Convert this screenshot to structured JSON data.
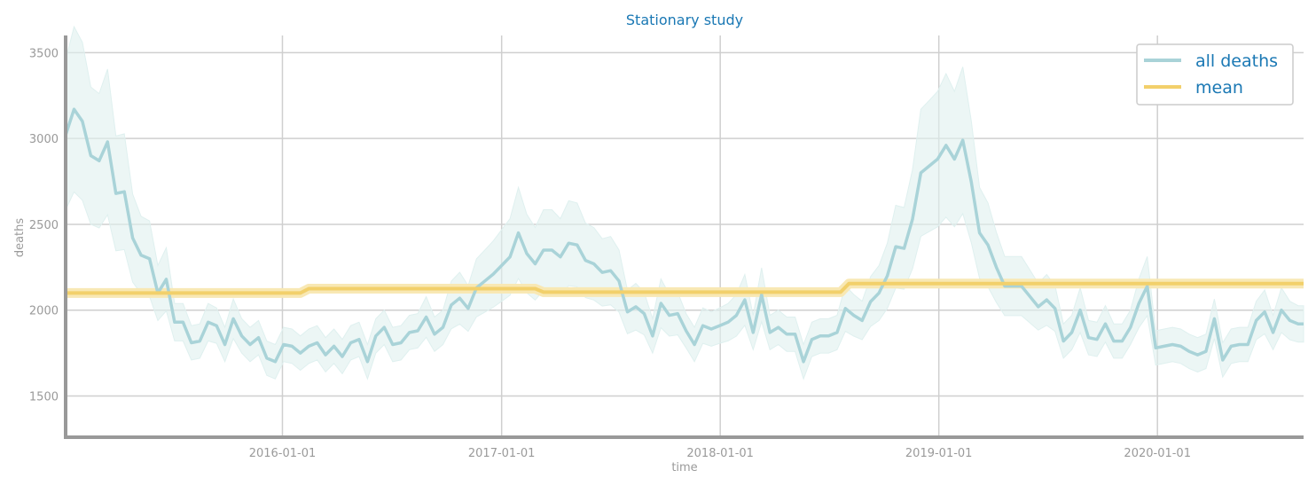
{
  "chart_data": {
    "type": "line",
    "title": "Stationary study",
    "xlabel": "time",
    "ylabel": "deaths",
    "xlim": [
      "2015-01-04",
      "2020-09-01"
    ],
    "ylim": [
      1260,
      3600
    ],
    "x_ticks": [
      "2016-01-01",
      "2017-01-01",
      "2018-01-01",
      "2019-01-01",
      "2020-01-01"
    ],
    "y_ticks": [
      1500,
      2000,
      2500,
      3000,
      3500
    ],
    "grid": true,
    "legend_position": "top-right",
    "series": [
      {
        "name": "all deaths",
        "color": "#a9d3d8",
        "band_color": "#dff0ef",
        "points": [
          [
            "2015-01-04",
            3020
          ],
          [
            "2015-01-18",
            3170
          ],
          [
            "2015-02-01",
            3100
          ],
          [
            "2015-02-15",
            2900
          ],
          [
            "2015-03-01",
            2870
          ],
          [
            "2015-03-15",
            2980
          ],
          [
            "2015-03-29",
            2680
          ],
          [
            "2015-04-12",
            2690
          ],
          [
            "2015-04-26",
            2420
          ],
          [
            "2015-05-10",
            2320
          ],
          [
            "2015-05-24",
            2300
          ],
          [
            "2015-06-07",
            2100
          ],
          [
            "2015-06-21",
            2180
          ],
          [
            "2015-07-05",
            1930
          ],
          [
            "2015-07-19",
            1930
          ],
          [
            "2015-08-02",
            1810
          ],
          [
            "2015-08-16",
            1820
          ],
          [
            "2015-08-30",
            1930
          ],
          [
            "2015-09-13",
            1910
          ],
          [
            "2015-09-27",
            1800
          ],
          [
            "2015-10-11",
            1950
          ],
          [
            "2015-10-25",
            1850
          ],
          [
            "2015-11-08",
            1800
          ],
          [
            "2015-11-22",
            1840
          ],
          [
            "2015-12-06",
            1720
          ],
          [
            "2015-12-20",
            1700
          ],
          [
            "2016-01-03",
            1800
          ],
          [
            "2016-01-17",
            1790
          ],
          [
            "2016-01-31",
            1750
          ],
          [
            "2016-02-14",
            1790
          ],
          [
            "2016-02-28",
            1810
          ],
          [
            "2016-03-13",
            1740
          ],
          [
            "2016-03-27",
            1790
          ],
          [
            "2016-04-10",
            1730
          ],
          [
            "2016-04-24",
            1810
          ],
          [
            "2016-05-08",
            1830
          ],
          [
            "2016-05-22",
            1700
          ],
          [
            "2016-06-05",
            1850
          ],
          [
            "2016-06-19",
            1900
          ],
          [
            "2016-07-03",
            1800
          ],
          [
            "2016-07-17",
            1810
          ],
          [
            "2016-07-31",
            1870
          ],
          [
            "2016-08-14",
            1880
          ],
          [
            "2016-08-28",
            1960
          ],
          [
            "2016-09-11",
            1860
          ],
          [
            "2016-09-25",
            1900
          ],
          [
            "2016-10-09",
            2030
          ],
          [
            "2016-10-23",
            2070
          ],
          [
            "2016-11-06",
            2010
          ],
          [
            "2016-11-20",
            2130
          ],
          [
            "2016-12-04",
            2170
          ],
          [
            "2016-12-18",
            2210
          ],
          [
            "2017-01-01",
            2260
          ],
          [
            "2017-01-15",
            2310
          ],
          [
            "2017-01-29",
            2450
          ],
          [
            "2017-02-12",
            2330
          ],
          [
            "2017-02-26",
            2270
          ],
          [
            "2017-03-12",
            2350
          ],
          [
            "2017-03-26",
            2350
          ],
          [
            "2017-04-09",
            2310
          ],
          [
            "2017-04-23",
            2390
          ],
          [
            "2017-05-07",
            2380
          ],
          [
            "2017-05-21",
            2290
          ],
          [
            "2017-06-04",
            2270
          ],
          [
            "2017-06-18",
            2220
          ],
          [
            "2017-07-02",
            2230
          ],
          [
            "2017-07-16",
            2170
          ],
          [
            "2017-07-30",
            1990
          ],
          [
            "2017-08-13",
            2020
          ],
          [
            "2017-08-27",
            1980
          ],
          [
            "2017-09-10",
            1850
          ],
          [
            "2017-09-24",
            2040
          ],
          [
            "2017-10-08",
            1970
          ],
          [
            "2017-10-22",
            1980
          ],
          [
            "2017-11-05",
            1880
          ],
          [
            "2017-11-19",
            1800
          ],
          [
            "2017-12-03",
            1910
          ],
          [
            "2017-12-17",
            1890
          ],
          [
            "2017-12-31",
            1910
          ],
          [
            "2018-01-14",
            1930
          ],
          [
            "2018-01-28",
            1970
          ],
          [
            "2018-02-11",
            2060
          ],
          [
            "2018-02-25",
            1870
          ],
          [
            "2018-03-11",
            2090
          ],
          [
            "2018-03-25",
            1870
          ],
          [
            "2018-04-08",
            1900
          ],
          [
            "2018-04-22",
            1860
          ],
          [
            "2018-05-06",
            1860
          ],
          [
            "2018-05-20",
            1700
          ],
          [
            "2018-06-03",
            1830
          ],
          [
            "2018-06-17",
            1850
          ],
          [
            "2018-07-01",
            1850
          ],
          [
            "2018-07-15",
            1870
          ],
          [
            "2018-07-29",
            2010
          ],
          [
            "2018-08-12",
            1970
          ],
          [
            "2018-08-26",
            1940
          ],
          [
            "2018-09-09",
            2050
          ],
          [
            "2018-09-23",
            2100
          ],
          [
            "2018-10-07",
            2200
          ],
          [
            "2018-10-21",
            2370
          ],
          [
            "2018-11-04",
            2360
          ],
          [
            "2018-11-18",
            2530
          ],
          [
            "2018-12-02",
            2800
          ],
          [
            "2018-12-16",
            2840
          ],
          [
            "2018-12-30",
            2880
          ],
          [
            "2019-01-13",
            2960
          ],
          [
            "2019-01-27",
            2880
          ],
          [
            "2019-02-10",
            2990
          ],
          [
            "2019-02-24",
            2750
          ],
          [
            "2019-03-10",
            2450
          ],
          [
            "2019-03-24",
            2380
          ],
          [
            "2019-04-07",
            2250
          ],
          [
            "2019-04-21",
            2140
          ],
          [
            "2019-05-05",
            2140
          ],
          [
            "2019-05-19",
            2140
          ],
          [
            "2019-06-02",
            2080
          ],
          [
            "2019-06-16",
            2020
          ],
          [
            "2019-06-30",
            2060
          ],
          [
            "2019-07-14",
            2010
          ],
          [
            "2019-07-28",
            1820
          ],
          [
            "2019-08-11",
            1870
          ],
          [
            "2019-08-25",
            2000
          ],
          [
            "2019-09-08",
            1840
          ],
          [
            "2019-09-22",
            1830
          ],
          [
            "2019-10-06",
            1920
          ],
          [
            "2019-10-20",
            1820
          ],
          [
            "2019-11-03",
            1820
          ],
          [
            "2019-11-17",
            1900
          ],
          [
            "2019-12-01",
            2040
          ],
          [
            "2019-12-15",
            2140
          ],
          [
            "2019-12-29",
            1780
          ],
          [
            "2020-01-12",
            1790
          ],
          [
            "2020-01-26",
            1800
          ],
          [
            "2020-02-09",
            1790
          ],
          [
            "2020-02-23",
            1760
          ],
          [
            "2020-03-08",
            1740
          ],
          [
            "2020-03-22",
            1760
          ],
          [
            "2020-04-05",
            1950
          ],
          [
            "2020-04-19",
            1710
          ],
          [
            "2020-05-03",
            1790
          ],
          [
            "2020-05-17",
            1800
          ],
          [
            "2020-05-31",
            1800
          ],
          [
            "2020-06-14",
            1940
          ],
          [
            "2020-06-28",
            1990
          ],
          [
            "2020-07-12",
            1870
          ],
          [
            "2020-07-26",
            2000
          ],
          [
            "2020-08-09",
            1940
          ],
          [
            "2020-08-23",
            1920
          ],
          [
            "2020-09-01",
            1920
          ]
        ]
      },
      {
        "name": "mean",
        "color": "#f2d06b",
        "band_color": "#f8e8b4",
        "points": [
          [
            "2015-01-04",
            2100
          ],
          [
            "2016-01-31",
            2100
          ],
          [
            "2016-02-14",
            2125
          ],
          [
            "2017-02-26",
            2125
          ],
          [
            "2017-03-12",
            2105
          ],
          [
            "2018-07-21",
            2105
          ],
          [
            "2018-08-04",
            2155
          ],
          [
            "2020-09-01",
            2155
          ]
        ]
      }
    ]
  }
}
